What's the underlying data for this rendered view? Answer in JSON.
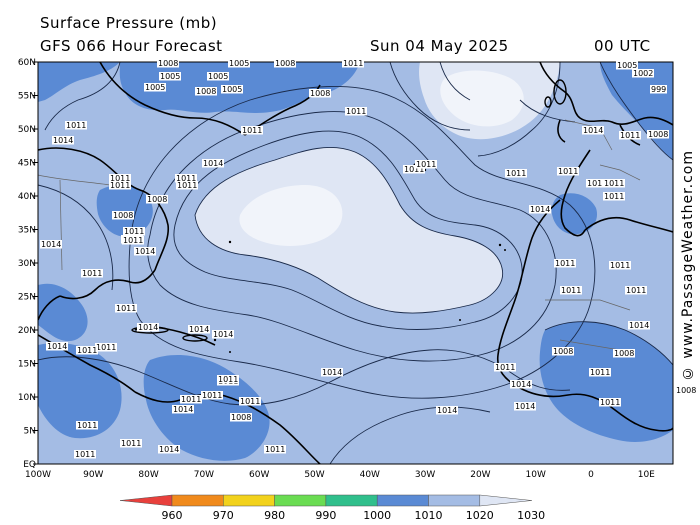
{
  "header": {
    "title": "Surface Pressure (mb)",
    "model": "GFS 066 Hour Forecast",
    "date": "Sun 04 May 2025",
    "time": "00 UTC"
  },
  "credit": "© www.PassageWeather.com",
  "axes": {
    "lat_labels": [
      "60N",
      "55N",
      "50N",
      "45N",
      "40N",
      "35N",
      "30N",
      "25N",
      "20N",
      "15N",
      "10N",
      "5N",
      "EQ"
    ],
    "lon_labels": [
      "100W",
      "90W",
      "80W",
      "70W",
      "60W",
      "50W",
      "40W",
      "30W",
      "20W",
      "10W",
      "0",
      "10E"
    ]
  },
  "colorbar": {
    "labels": [
      "960",
      "970",
      "980",
      "990",
      "1000",
      "1010",
      "1020",
      "1030"
    ],
    "colors": [
      "#e8403c",
      "#f08a1c",
      "#f2d21c",
      "#6adc52",
      "#30bf8c",
      "#5a8ad4",
      "#a4bce4",
      "#dfe6f4"
    ]
  },
  "isobar_labels": [
    {
      "text": "1008"
    },
    {
      "text": "1005"
    },
    {
      "text": "1005"
    },
    {
      "text": "1008"
    },
    {
      "text": "1005"
    },
    {
      "text": "1005"
    },
    {
      "text": "1008"
    },
    {
      "text": "1005"
    },
    {
      "text": "1008"
    },
    {
      "text": "1011"
    },
    {
      "text": "1011"
    },
    {
      "text": "1011"
    },
    {
      "text": "1014"
    },
    {
      "text": "1011"
    },
    {
      "text": "1014"
    },
    {
      "text": "1011"
    },
    {
      "text": "1011"
    },
    {
      "text": "1011"
    },
    {
      "text": "1011"
    },
    {
      "text": "1008"
    },
    {
      "text": "1008"
    },
    {
      "text": "1011"
    },
    {
      "text": "1014"
    },
    {
      "text": "1011"
    },
    {
      "text": "1014"
    },
    {
      "text": "1011"
    },
    {
      "text": "1011"
    },
    {
      "text": "1011"
    },
    {
      "text": "1014"
    },
    {
      "text": "1014"
    },
    {
      "text": "1014"
    },
    {
      "text": "1011"
    },
    {
      "text": "1014"
    },
    {
      "text": "1011"
    },
    {
      "text": "1011"
    },
    {
      "text": "1011"
    },
    {
      "text": "1011"
    },
    {
      "text": "1011"
    },
    {
      "text": "1011"
    },
    {
      "text": "1014"
    },
    {
      "text": "1014"
    },
    {
      "text": "1011"
    },
    {
      "text": "1011"
    },
    {
      "text": "1008"
    },
    {
      "text": "1011"
    },
    {
      "text": "1011"
    },
    {
      "text": "1014"
    },
    {
      "text": "1014"
    },
    {
      "text": "1011"
    },
    {
      "text": "1011"
    },
    {
      "text": "1011"
    },
    {
      "text": "1014"
    },
    {
      "text": "1011"
    },
    {
      "text": "1011"
    },
    {
      "text": "1005"
    },
    {
      "text": "1002"
    },
    {
      "text": "999"
    },
    {
      "text": "1014"
    },
    {
      "text": "1011"
    },
    {
      "text": "1008"
    },
    {
      "text": "1011"
    },
    {
      "text": "1011"
    },
    {
      "text": "1011"
    },
    {
      "text": "1011"
    },
    {
      "text": "1011"
    },
    {
      "text": "1011"
    },
    {
      "text": "1014"
    },
    {
      "text": "1011"
    },
    {
      "text": "1014"
    },
    {
      "text": "1008"
    },
    {
      "text": "1011"
    },
    {
      "text": "1011"
    },
    {
      "text": "1014"
    },
    {
      "text": "1008"
    },
    {
      "text": "1008"
    }
  ]
}
